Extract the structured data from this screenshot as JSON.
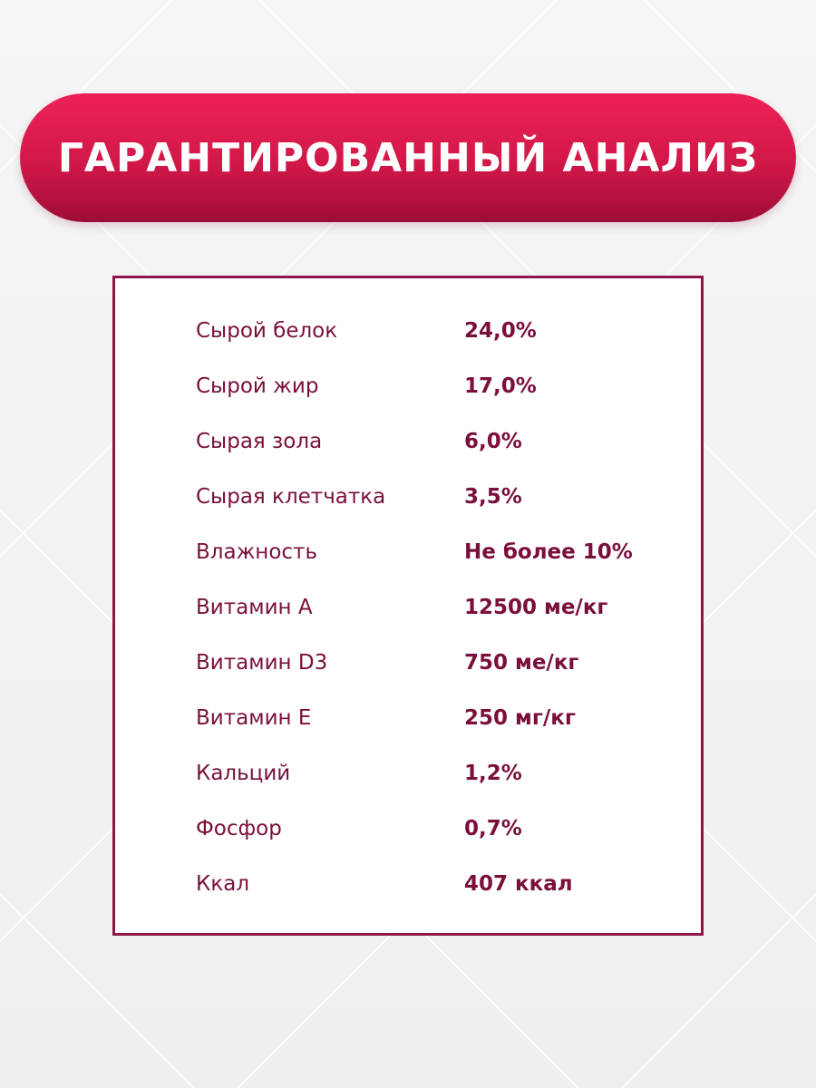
{
  "title": "ГАРАНТИРОВАННЫЙ АНАЛИЗ",
  "colors": {
    "title_gradient_top": "#ee2158",
    "title_gradient_bottom": "#9e0c37",
    "text_and_border": "#7a0f3b"
  },
  "rows": [
    {
      "label": "Сырой белок",
      "value": "24,0%"
    },
    {
      "label": "Сырой жир",
      "value": "17,0%"
    },
    {
      "label": "Сырая зола",
      "value": "6,0%"
    },
    {
      "label": "Сырая клетчатка",
      "value": "3,5%"
    },
    {
      "label": "Влажность",
      "value": "Не более 10%"
    },
    {
      "label": "Витамин А",
      "value": "12500 ме/кг"
    },
    {
      "label": "Витамин D3",
      "value": "750 ме/кг"
    },
    {
      "label": "Витамин Е",
      "value": "250 мг/кг"
    },
    {
      "label": "Кальций",
      "value": "1,2%"
    },
    {
      "label": "Фосфор",
      "value": "0,7%"
    },
    {
      "label": "Ккал",
      "value": "407 ккал"
    }
  ]
}
